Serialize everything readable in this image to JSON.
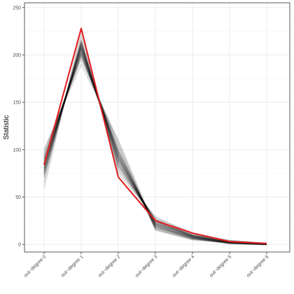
{
  "chart_data": {
    "type": "line",
    "ylabel": "Statistic",
    "xlabel": "",
    "ylim": [
      -8,
      255
    ],
    "y_ticks": [
      0,
      50,
      100,
      150,
      200,
      250
    ],
    "y_tick_labels": [
      "0",
      "50",
      "100",
      "150",
      "200",
      "250"
    ],
    "categories": [
      "out−degree 0",
      "out−degree 1",
      "out−degree 2",
      "out−degree 3",
      "out−degree 4",
      "out−degree 5",
      "out−degree 6"
    ],
    "grid": true,
    "legend": "none",
    "series": [
      {
        "role": "simulated",
        "values": [
          80,
          210,
          90,
          22,
          8,
          2,
          0
        ]
      },
      {
        "role": "simulated",
        "values": [
          85,
          205,
          95,
          20,
          7,
          3,
          1
        ]
      },
      {
        "role": "simulated",
        "values": [
          75,
          212,
          85,
          25,
          9,
          2,
          0
        ]
      },
      {
        "role": "simulated",
        "values": [
          90,
          200,
          100,
          18,
          6,
          1,
          0
        ]
      },
      {
        "role": "simulated",
        "values": [
          70,
          215,
          80,
          26,
          10,
          3,
          1
        ]
      },
      {
        "role": "simulated",
        "values": [
          95,
          198,
          105,
          15,
          5,
          2,
          0
        ]
      },
      {
        "role": "simulated",
        "values": [
          82,
          208,
          92,
          21,
          8,
          2,
          1
        ]
      },
      {
        "role": "simulated",
        "values": [
          78,
          213,
          88,
          24,
          9,
          3,
          0
        ]
      },
      {
        "role": "simulated",
        "values": [
          88,
          203,
          97,
          19,
          7,
          1,
          0
        ]
      },
      {
        "role": "simulated",
        "values": [
          60,
          225,
          75,
          28,
          12,
          4,
          1
        ]
      },
      {
        "role": "simulated",
        "values": [
          100,
          190,
          110,
          17,
          6,
          2,
          0
        ]
      },
      {
        "role": "simulated",
        "values": [
          84,
          207,
          93,
          23,
          8,
          2,
          1
        ]
      },
      {
        "role": "simulated",
        "values": [
          77,
          211,
          87,
          22,
          10,
          3,
          0
        ]
      },
      {
        "role": "simulated",
        "values": [
          92,
          202,
          99,
          20,
          7,
          2,
          1
        ]
      },
      {
        "role": "simulated",
        "values": [
          73,
          214,
          83,
          27,
          9,
          4,
          1
        ]
      },
      {
        "role": "simulated",
        "values": [
          86,
          206,
          94,
          18,
          8,
          1,
          0
        ]
      },
      {
        "role": "simulated",
        "values": [
          79,
          209,
          89,
          24,
          9,
          2,
          0
        ]
      },
      {
        "role": "simulated",
        "values": [
          94,
          199,
          104,
          16,
          5,
          2,
          0
        ]
      },
      {
        "role": "simulated",
        "values": [
          65,
          220,
          78,
          29,
          11,
          3,
          1
        ]
      },
      {
        "role": "simulated",
        "values": [
          81,
          210,
          91,
          21,
          8,
          2,
          1
        ]
      },
      {
        "role": "simulated",
        "values": [
          87,
          204,
          96,
          20,
          7,
          2,
          0
        ]
      },
      {
        "role": "simulated",
        "values": [
          76,
          212,
          86,
          23,
          10,
          3,
          1
        ]
      },
      {
        "role": "simulated",
        "values": [
          98,
          195,
          108,
          16,
          6,
          1,
          0
        ]
      },
      {
        "role": "simulated",
        "values": [
          83,
          207,
          92,
          22,
          9,
          2,
          0
        ]
      },
      {
        "role": "simulated",
        "values": [
          71,
          216,
          82,
          26,
          10,
          4,
          1
        ]
      },
      {
        "role": "simulated",
        "values": [
          89,
          201,
          98,
          19,
          6,
          2,
          1
        ]
      },
      {
        "role": "simulated",
        "values": [
          80,
          209,
          90,
          24,
          8,
          3,
          0
        ]
      },
      {
        "role": "simulated",
        "values": [
          74,
          213,
          84,
          25,
          9,
          2,
          1
        ]
      },
      {
        "role": "simulated",
        "values": [
          91,
          202,
          100,
          18,
          7,
          1,
          0
        ]
      },
      {
        "role": "simulated",
        "values": [
          85,
          206,
          95,
          21,
          8,
          2,
          0
        ]
      },
      {
        "role": "observed",
        "values": [
          84,
          228,
          71,
          25,
          12,
          3,
          1
        ]
      }
    ]
  },
  "colors": {
    "simulated": "#000000",
    "observed": "#e41a1c",
    "grid_major": "#ebebeb",
    "grid_minor": "#f5f5f5",
    "panel_border": "#333333",
    "tick_text": "#4d4d4d"
  }
}
